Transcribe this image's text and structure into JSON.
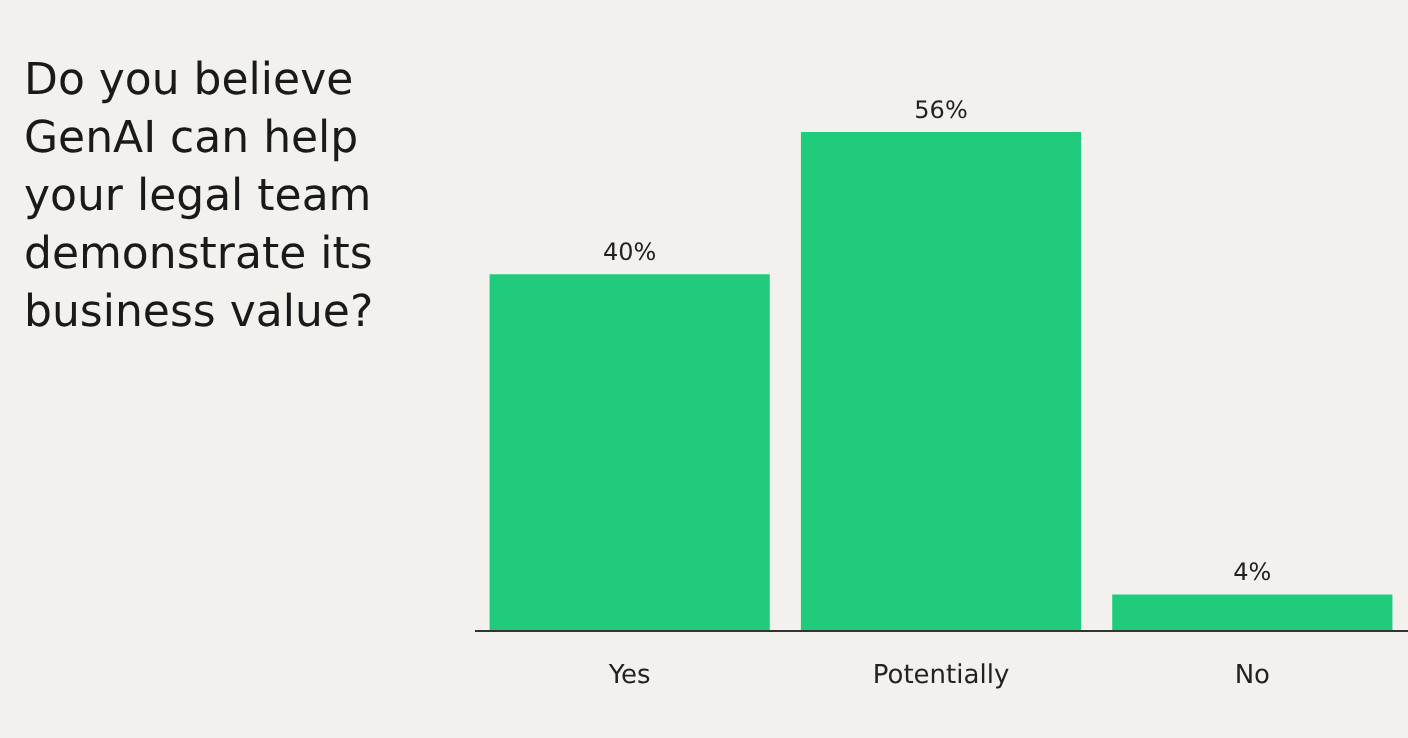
{
  "chart_data": {
    "type": "bar",
    "title": "Do you believe GenAI can help your legal team demonstrate its business value?",
    "categories": [
      "Yes",
      "Potentially",
      "No"
    ],
    "values": [
      40,
      56,
      4
    ],
    "value_labels": [
      "40%",
      "56%",
      "4%"
    ],
    "color": "#20cc7b"
  }
}
